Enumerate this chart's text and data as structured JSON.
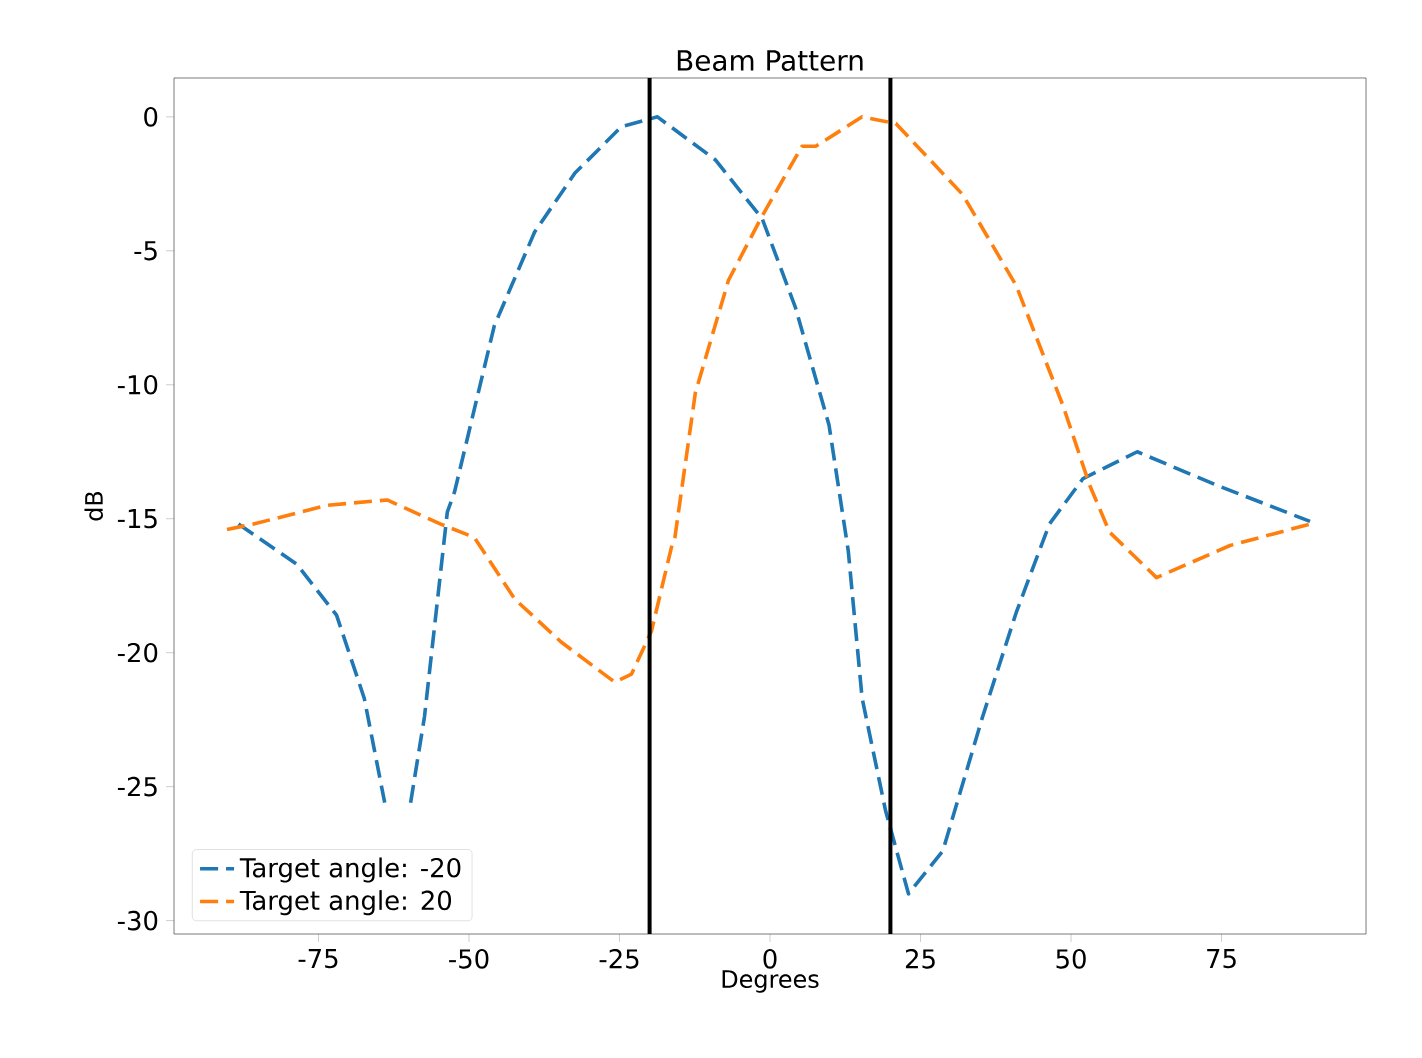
{
  "chart_data": {
    "type": "line",
    "title": "Beam Pattern",
    "xlabel": "Degrees",
    "ylabel": "dB",
    "xlim": [
      -99,
      99
    ],
    "xticks": [
      -75,
      -50,
      -25,
      0,
      25,
      50,
      75
    ],
    "ylim": [
      -30.5,
      1.45
    ],
    "yticks": [
      0,
      -5,
      -10,
      -15,
      -20,
      -25,
      -30
    ],
    "legend": "bottom left",
    "line_style": "dashed",
    "marker": "none",
    "ref_lines": [
      {
        "axis": "x",
        "value": -20,
        "color": "#000000"
      },
      {
        "axis": "x",
        "value": 20,
        "color": "#000000"
      }
    ],
    "series": [
      {
        "name": "Target angle: -20",
        "color": "#1f77b4",
        "x": [
          -88.3,
          -78.6,
          -72,
          -67.4,
          -64,
          -62,
          -59.7,
          -57.4,
          -53.6,
          -52.4,
          -45.8,
          -39.1,
          -32.4,
          -24.7,
          -18.7,
          -9.1,
          -1.3,
          4.2,
          9.8,
          13,
          15.3,
          19.2,
          23,
          28.7,
          35.3,
          40.9,
          46.4,
          52,
          61,
          74.2,
          89.7
        ],
        "values": [
          -15.2,
          -16.7,
          -18.6,
          -21.7,
          -25.6,
          null,
          -25.6,
          -22.4,
          -14.75,
          -14.0,
          -7.8,
          -4.3,
          -2.1,
          -0.37,
          0,
          -1.6,
          -3.8,
          -7.1,
          -11.5,
          -16.2,
          -21.7,
          -25.9,
          -29.0,
          -27.4,
          -22.4,
          -18.5,
          -15.2,
          -13.5,
          -12.5,
          -13.75,
          -15.1
        ]
      },
      {
        "name": "Target angle:  20",
        "color": "#ff7f0e",
        "x": [
          -90.2,
          -85.8,
          -73.6,
          -63.6,
          -54.7,
          -49.1,
          -42.4,
          -34.7,
          -25.8,
          -23,
          -19.7,
          -16.3,
          -15.8,
          -12.4,
          -6.9,
          -1.3,
          5.3,
          7.6,
          15.3,
          20.9,
          32,
          40.9,
          48.7,
          53.1,
          56.4,
          64.2,
          76.4,
          89.7
        ],
        "values": [
          -15.4,
          -15.2,
          -14.5,
          -14.3,
          -15.2,
          -15.7,
          -18.0,
          -19.6,
          -21.1,
          -20.8,
          -19.2,
          -16.0,
          -15.7,
          -10.3,
          -6.1,
          -3.7,
          -1.1,
          -1.1,
          0,
          -0.25,
          -2.9,
          -6.3,
          -10.8,
          -13.75,
          -15.5,
          -17.2,
          -16.0,
          -15.2
        ]
      }
    ]
  }
}
